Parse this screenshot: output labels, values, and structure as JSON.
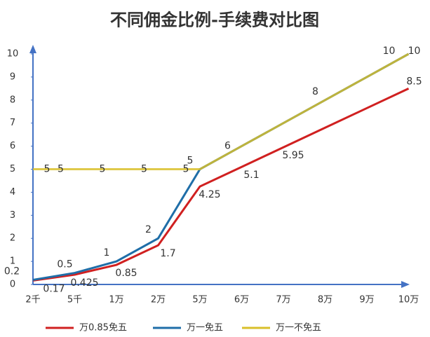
{
  "chart_data": {
    "type": "line",
    "title": "不同佣金比例-手续费对比图",
    "categories": [
      "2千",
      "5千",
      "1万",
      "2万",
      "5万",
      "6万",
      "7万",
      "8万",
      "9万",
      "10万"
    ],
    "ylim": [
      0,
      10
    ],
    "yticks": [
      0,
      1,
      2,
      3,
      4,
      5,
      6,
      7,
      8,
      9,
      10
    ],
    "legend": "bottom",
    "series": [
      {
        "name": "万0.85免五",
        "color": "#d02020",
        "values": [
          0.17,
          0.425,
          0.85,
          1.7,
          4.25,
          5.1,
          5.95,
          6.8,
          7.65,
          8.5
        ],
        "value_labels": [
          "0.17",
          "0.425",
          "0.85",
          "1.7",
          "4.25",
          "5.1",
          "5.95",
          null,
          null,
          "8.5"
        ]
      },
      {
        "name": "万一免五",
        "color": "#1f6ea8",
        "values": [
          0.2,
          0.5,
          1,
          2,
          5,
          6,
          7,
          8,
          9,
          10
        ],
        "value_labels": [
          "0.2",
          "0.5",
          "1",
          "2",
          "5",
          null,
          null,
          "8",
          null,
          "10"
        ]
      },
      {
        "name": "万一不免五",
        "color": "#d9bf2a",
        "values": [
          5,
          5,
          5,
          5,
          5,
          6,
          7,
          8,
          9,
          10
        ],
        "value_labels": [
          "5",
          "5",
          "5",
          "5",
          "5",
          "6",
          null,
          null,
          null,
          "10"
        ]
      }
    ]
  }
}
